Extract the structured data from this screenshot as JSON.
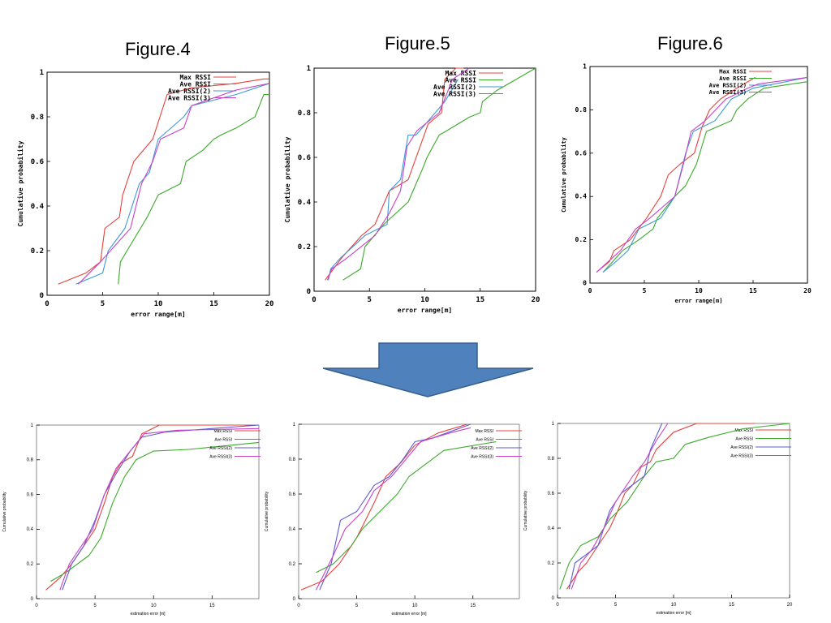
{
  "titles": [
    "Figure.4",
    "Figure.5",
    "Figure.6"
  ],
  "arrow": {
    "color": "#4f81bd",
    "stroke": "#385d8a"
  },
  "chart_data": [
    {
      "type": "line",
      "xlabel": "error range[m]",
      "ylabel": "Cumulative probability",
      "xlim": [
        0,
        20
      ],
      "ylim": [
        0,
        1
      ],
      "xticks": [
        "0",
        "5",
        "10",
        "15",
        "20"
      ],
      "yticks": [
        "0",
        "0.2",
        "0.4",
        "0.6",
        "0.8",
        "1"
      ],
      "legend": "top-right",
      "series": [
        {
          "name": "Max RSSI",
          "color": "#e8403a",
          "x": [
            1,
            3.5,
            4.8,
            5.2,
            6.5,
            6.8,
            7.8,
            9.5,
            10.8,
            13,
            17,
            19.5,
            20
          ],
          "y": [
            0.05,
            0.1,
            0.15,
            0.3,
            0.35,
            0.45,
            0.6,
            0.7,
            0.9,
            0.93,
            0.95,
            0.97,
            0.97
          ]
        },
        {
          "name": "Ave RSSI",
          "color": "#3aaa2a",
          "x": [
            6.4,
            6.6,
            7.2,
            9,
            10,
            12,
            12.5,
            14,
            15,
            15.7,
            17,
            18.7,
            19.5,
            20
          ],
          "y": [
            0.05,
            0.15,
            0.2,
            0.35,
            0.45,
            0.5,
            0.6,
            0.65,
            0.7,
            0.72,
            0.75,
            0.8,
            0.9,
            0.9
          ]
        },
        {
          "name": "Ave RSSI(2)",
          "color": "#3d9ad6",
          "x": [
            2.6,
            5,
            5.5,
            7,
            8.3,
            9.2,
            10,
            12.3,
            13,
            17,
            20
          ],
          "y": [
            0.05,
            0.1,
            0.2,
            0.3,
            0.5,
            0.55,
            0.7,
            0.8,
            0.85,
            0.9,
            0.95
          ]
        },
        {
          "name": "Ave RSSI(3)",
          "color": "#c742c7",
          "x": [
            2.8,
            4.8,
            7.5,
            8.5,
            9.5,
            10.2,
            12.3,
            13,
            17,
            20
          ],
          "y": [
            0.05,
            0.15,
            0.3,
            0.5,
            0.6,
            0.7,
            0.75,
            0.85,
            0.92,
            0.95
          ]
        }
      ]
    },
    {
      "type": "line",
      "xlabel": "error range[m]",
      "ylabel": "Cumulative probability",
      "xlim": [
        0,
        20
      ],
      "ylim": [
        0,
        1
      ],
      "xticks": [
        "0",
        "5",
        "10",
        "15",
        "20"
      ],
      "yticks": [
        "0",
        "0.2",
        "0.4",
        "0.6",
        "0.8",
        "1"
      ],
      "legend": "top-right",
      "series": [
        {
          "name": "Max RSSI",
          "color": "#e8403a",
          "x": [
            1,
            2.5,
            4.3,
            5.5,
            6.8,
            8.5,
            10.3,
            11.5,
            11.8,
            12.8,
            13.5
          ],
          "y": [
            0.05,
            0.15,
            0.25,
            0.3,
            0.45,
            0.5,
            0.75,
            0.8,
            0.95,
            1,
            1
          ]
        },
        {
          "name": "Ave RSSI",
          "color": "#3aaa2a",
          "x": [
            2.6,
            4.2,
            4.6,
            6.3,
            8.5,
            9.8,
            10.2,
            11.3,
            12,
            14,
            15,
            15.2,
            16.5,
            20
          ],
          "y": [
            0.05,
            0.1,
            0.2,
            0.3,
            0.4,
            0.55,
            0.6,
            0.7,
            0.72,
            0.78,
            0.8,
            0.85,
            0.9,
            1
          ]
        },
        {
          "name": "Ave RSSI(2)",
          "color": "#3d9ad6",
          "x": [
            1.3,
            1.5,
            2.4,
            4.6,
            6.6,
            6.8,
            7.8,
            8.5,
            9.2,
            11.8,
            13
          ],
          "y": [
            0.05,
            0.1,
            0.15,
            0.25,
            0.3,
            0.45,
            0.5,
            0.7,
            0.7,
            0.85,
            0.95
          ]
        },
        {
          "name": "Ave RSSI(3)",
          "color": "#c742c7",
          "x": [
            1.2,
            1.6,
            3,
            5.5,
            6.8,
            7.8,
            8.4,
            9.3,
            11.3,
            12.5,
            14
          ],
          "y": [
            0.05,
            0.1,
            0.15,
            0.25,
            0.35,
            0.45,
            0.65,
            0.72,
            0.8,
            0.95,
            1
          ]
        }
      ]
    },
    {
      "type": "line",
      "xlabel": "error range[m]",
      "ylabel": "Cumulative probability",
      "xlim": [
        0,
        20
      ],
      "ylim": [
        0,
        1
      ],
      "xticks": [
        "0",
        "5",
        "10",
        "15",
        "20"
      ],
      "yticks": [
        "0",
        "0.2",
        "0.4",
        "0.6",
        "0.8",
        "1"
      ],
      "legend": "top-right",
      "series": [
        {
          "name": "Max RSSI",
          "color": "#e8403a",
          "x": [
            0.6,
            1.8,
            2.2,
            3.7,
            5.2,
            6.5,
            7.2,
            8.3,
            9.6,
            10.3,
            11,
            12,
            13.5,
            15.2
          ],
          "y": [
            0.05,
            0.1,
            0.15,
            0.2,
            0.3,
            0.4,
            0.5,
            0.55,
            0.6,
            0.72,
            0.8,
            0.85,
            0.9,
            0.95
          ]
        },
        {
          "name": "Ave RSSI",
          "color": "#3aaa2a",
          "x": [
            1.2,
            3,
            4.5,
            5.8,
            6.2,
            7.8,
            8.8,
            9.8,
            10.7,
            13,
            13.5,
            14.5,
            16,
            20
          ],
          "y": [
            0.05,
            0.15,
            0.2,
            0.25,
            0.3,
            0.4,
            0.45,
            0.55,
            0.7,
            0.75,
            0.8,
            0.85,
            0.9,
            0.93
          ]
        },
        {
          "name": "Ave RSSI(2)",
          "color": "#3d9ad6",
          "x": [
            1.2,
            2.4,
            3.5,
            4.5,
            6.5,
            7.8,
            8.8,
            9.5,
            11.5,
            13,
            15,
            20
          ],
          "y": [
            0.05,
            0.1,
            0.15,
            0.25,
            0.3,
            0.4,
            0.6,
            0.7,
            0.75,
            0.85,
            0.9,
            0.95
          ]
        },
        {
          "name": "Ave RSSI(3)",
          "color": "#c742c7",
          "x": [
            0.6,
            2.8,
            4.2,
            5.5,
            7.8,
            8.6,
            9.3,
            10.6,
            12.5,
            14.5,
            15.5,
            20
          ],
          "y": [
            0.05,
            0.15,
            0.25,
            0.3,
            0.4,
            0.55,
            0.7,
            0.75,
            0.85,
            0.9,
            0.92,
            0.95
          ]
        }
      ]
    },
    {
      "type": "line",
      "xlabel": "estimation error [m]",
      "ylabel": "Cumulative probability",
      "xlim": [
        0,
        19
      ],
      "ylim": [
        0,
        1
      ],
      "xticks": [
        "0",
        "5",
        "10",
        "15"
      ],
      "yticks": [
        "0",
        "0.2",
        "0.4",
        "0.6",
        "0.8",
        "1"
      ],
      "legend": "top-right",
      "series": [
        {
          "name": "Max RSSI",
          "color": "#e8403a",
          "x": [
            0.8,
            2,
            3,
            4,
            5,
            5.8,
            6.5,
            7.2,
            8.2,
            9,
            10.5,
            19
          ],
          "y": [
            0.05,
            0.12,
            0.2,
            0.3,
            0.4,
            0.55,
            0.7,
            0.78,
            0.82,
            0.95,
            1,
            1
          ]
        },
        {
          "name": "Ave RSSI",
          "color": "#3aaa2a",
          "x": [
            1.2,
            2.5,
            3.5,
            4.5,
            5.5,
            6.5,
            7.5,
            8.5,
            10,
            13,
            19
          ],
          "y": [
            0.1,
            0.15,
            0.2,
            0.25,
            0.35,
            0.55,
            0.7,
            0.8,
            0.85,
            0.86,
            0.9
          ]
        },
        {
          "name": "Ave RSSI(2)",
          "color": "#5b5bd6",
          "x": [
            2.2,
            3,
            4,
            5,
            5.8,
            6.8,
            8,
            9,
            11,
            19
          ],
          "y": [
            0.05,
            0.2,
            0.3,
            0.45,
            0.6,
            0.72,
            0.85,
            0.93,
            0.96,
            1
          ]
        },
        {
          "name": "Ave RSSI(3)",
          "color": "#c742c7",
          "x": [
            2,
            2.8,
            3.8,
            4.8,
            5.8,
            6.8,
            8,
            9.2,
            12,
            19
          ],
          "y": [
            0.05,
            0.2,
            0.3,
            0.4,
            0.6,
            0.75,
            0.85,
            0.95,
            0.97,
            0.98
          ]
        }
      ]
    },
    {
      "type": "line",
      "xlabel": "estimation error [m]",
      "ylabel": "Cumulative probability",
      "xlim": [
        0,
        19
      ],
      "ylim": [
        0,
        1
      ],
      "xticks": [
        "0",
        "5",
        "10",
        "15"
      ],
      "yticks": [
        "0",
        "0.2",
        "0.4",
        "0.6",
        "0.8",
        "1"
      ],
      "legend": "top-right",
      "series": [
        {
          "name": "Max RSSI",
          "color": "#e8403a",
          "x": [
            0.2,
            2,
            3.5,
            5,
            6.5,
            7.5,
            8.8,
            10,
            12,
            14.5
          ],
          "y": [
            0.05,
            0.1,
            0.2,
            0.35,
            0.55,
            0.7,
            0.78,
            0.88,
            0.95,
            1
          ]
        },
        {
          "name": "Ave RSSI",
          "color": "#3aaa2a",
          "x": [
            1.5,
            3,
            4.5,
            5.5,
            7,
            8.5,
            9.5,
            10.5,
            12.5,
            17
          ],
          "y": [
            0.15,
            0.2,
            0.3,
            0.4,
            0.5,
            0.6,
            0.7,
            0.75,
            0.85,
            0.9
          ]
        },
        {
          "name": "Ave RSSI(2)",
          "color": "#5b5bd6",
          "x": [
            1.8,
            2.8,
            3.6,
            5,
            6.5,
            7.8,
            9,
            10,
            11.5,
            14.8
          ],
          "y": [
            0.05,
            0.2,
            0.45,
            0.5,
            0.65,
            0.7,
            0.8,
            0.9,
            0.92,
            1
          ]
        },
        {
          "name": "Ave RSSI(3)",
          "color": "#c742c7",
          "x": [
            1.5,
            3,
            4,
            5.5,
            6.5,
            8,
            9,
            10.5,
            13,
            14.8
          ],
          "y": [
            0.05,
            0.25,
            0.4,
            0.5,
            0.62,
            0.7,
            0.78,
            0.9,
            0.95,
            0.98
          ]
        }
      ]
    },
    {
      "type": "line",
      "xlabel": "estimation error [m]",
      "ylabel": "Cumulative probability",
      "xlim": [
        0,
        20
      ],
      "ylim": [
        0,
        1
      ],
      "xticks": [
        "0",
        "5",
        "10",
        "15",
        "20"
      ],
      "yticks": [
        "0",
        "0.2",
        "0.4",
        "0.6",
        "0.8",
        "1"
      ],
      "legend": "top-right",
      "series": [
        {
          "name": "Max RSSI",
          "color": "#e8403a",
          "x": [
            0.8,
            1.8,
            2.5,
            3.5,
            4.5,
            5.2,
            5.8,
            6.5,
            7.2,
            8,
            8.5,
            10,
            12,
            17
          ],
          "y": [
            0.05,
            0.15,
            0.2,
            0.3,
            0.4,
            0.5,
            0.6,
            0.65,
            0.75,
            0.78,
            0.85,
            0.95,
            1,
            1
          ]
        },
        {
          "name": "Ave RSSI",
          "color": "#3aaa2a",
          "x": [
            0.2,
            1,
            2,
            3.5,
            4.5,
            6,
            7.5,
            8.5,
            10,
            11,
            13,
            16,
            20
          ],
          "y": [
            0.05,
            0.2,
            0.3,
            0.35,
            0.45,
            0.55,
            0.7,
            0.78,
            0.8,
            0.88,
            0.92,
            0.97,
            1
          ]
        },
        {
          "name": "Ave RSSI(2)",
          "color": "#5b5bd6",
          "x": [
            1,
            1.5,
            2.5,
            3.5,
            4.5,
            5.5,
            6.5,
            7.5,
            8,
            9
          ],
          "y": [
            0.05,
            0.2,
            0.25,
            0.3,
            0.5,
            0.6,
            0.65,
            0.7,
            0.85,
            1
          ]
        },
        {
          "name": "Ave RSSI(3)",
          "color": "#c742c7",
          "x": [
            1.2,
            2,
            3,
            4,
            5,
            6.5,
            7.5,
            8.5,
            9.5
          ],
          "y": [
            0.05,
            0.2,
            0.28,
            0.4,
            0.55,
            0.7,
            0.78,
            0.9,
            1
          ]
        }
      ]
    }
  ]
}
